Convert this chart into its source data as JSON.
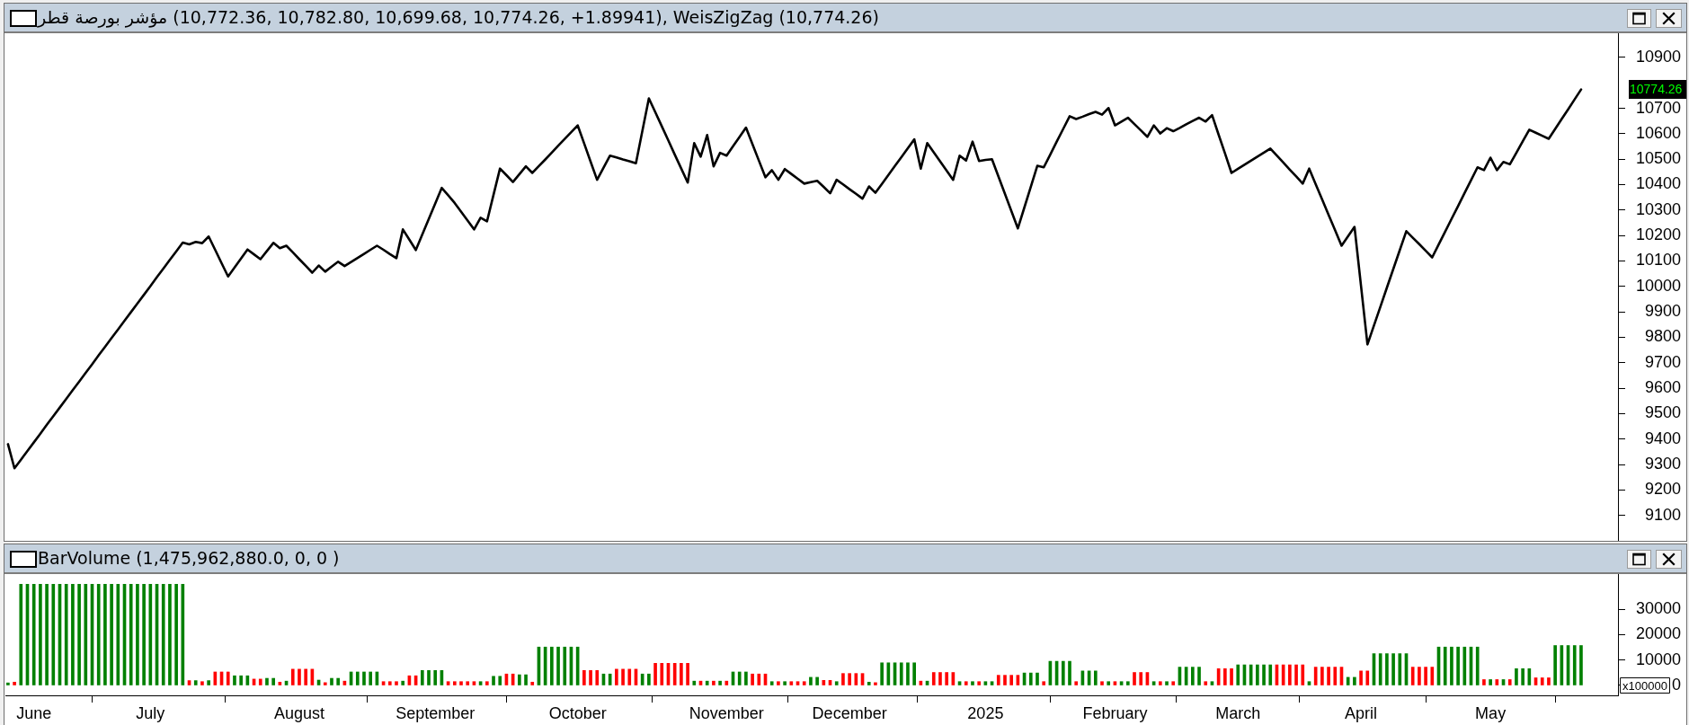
{
  "chart_data": [
    {
      "type": "line",
      "title": "مؤشر بورصة قطر (10,772.36, 10,782.80, 10,699.68, 10,774.26, +1.89941), WeisZigZag (10,774.26)",
      "color": "#000000",
      "categories": [
        null,
        null,
        null,
        null,
        null,
        null,
        null,
        null,
        null,
        null,
        null,
        null,
        null,
        null,
        null,
        null,
        null,
        null,
        null,
        null,
        null,
        null,
        null,
        null,
        null,
        null,
        null,
        null,
        null,
        null,
        null,
        null,
        null,
        null,
        null,
        null,
        null,
        null,
        null,
        null,
        null,
        null,
        null,
        null,
        null,
        null,
        null,
        null,
        null,
        null,
        null,
        null,
        null,
        null,
        null,
        null,
        null,
        null,
        null,
        null,
        null,
        null,
        null,
        null,
        null,
        null,
        null,
        null,
        null,
        null,
        null,
        null,
        null,
        null,
        null,
        null,
        null,
        null,
        null,
        null,
        null,
        null,
        null,
        null,
        null,
        null,
        null,
        null,
        null,
        null,
        null,
        null,
        null,
        null,
        null,
        null,
        null,
        null,
        null,
        null,
        null,
        null,
        null,
        null,
        null,
        null,
        null,
        null,
        null,
        null,
        null,
        null,
        null,
        null,
        null,
        null,
        null,
        null,
        null,
        null,
        null,
        null,
        null,
        null,
        null,
        null,
        null,
        null,
        null,
        null,
        null,
        null,
        null,
        null,
        null,
        null,
        null,
        null,
        null,
        null,
        null,
        null,
        null,
        null,
        null,
        null,
        null,
        null,
        null,
        null,
        null,
        null,
        null,
        null,
        null,
        null,
        null,
        null,
        null,
        null,
        null,
        null,
        null,
        null,
        null,
        null,
        null,
        null,
        null,
        null,
        null,
        null,
        null,
        null,
        null,
        null,
        null,
        null,
        null,
        null,
        null,
        null,
        null,
        null,
        null,
        null,
        null,
        null,
        null,
        null,
        null,
        null,
        null,
        null,
        null,
        null,
        null,
        null,
        null,
        null,
        null,
        null,
        null,
        null,
        null,
        null,
        null,
        null,
        null,
        null,
        null,
        null,
        null,
        null,
        null,
        null,
        null,
        null,
        null,
        null,
        null,
        null,
        null,
        null,
        null,
        null,
        null,
        null,
        null,
        null,
        null,
        null,
        null,
        null,
        null,
        null,
        null,
        null,
        null,
        null,
        null,
        null,
        null,
        null
      ],
      "values": [
        9380,
        9285,
        9319,
        9353,
        9387,
        9421,
        9456,
        9490,
        9524,
        9558,
        9592,
        9626,
        9660,
        9694,
        9729,
        9763,
        9797,
        9831,
        9865,
        9899,
        9933,
        9967,
        10001,
        10036,
        10070,
        10104,
        10138,
        10172,
        10165,
        10175,
        10170,
        10196,
        10144,
        10091,
        10039,
        10074,
        10110,
        10145,
        10126,
        10107,
        10139,
        10171,
        10150,
        10160,
        10134,
        10107,
        10081,
        10054,
        10082,
        10058,
        10078,
        10097,
        10080,
        10096,
        10112,
        10128,
        10144,
        10160,
        10144,
        10127,
        10111,
        10224,
        10184,
        10143,
        10204,
        10265,
        10326,
        10387,
        10358,
        10328,
        10293,
        10259,
        10224,
        10270,
        10256,
        10360,
        10463,
        10437,
        10410,
        10441,
        10472,
        10446,
        10473,
        10499,
        10526,
        10553,
        10580,
        10606,
        10633,
        10562,
        10490,
        10419,
        10467,
        10514,
        10507,
        10499,
        10492,
        10484,
        10612,
        10739,
        10684,
        10629,
        10574,
        10518,
        10463,
        10408,
        10563,
        10510,
        10595,
        10472,
        10525,
        10514,
        10551,
        10587,
        10624,
        10559,
        10494,
        10429,
        10457,
        10419,
        10461,
        10442,
        10423,
        10404,
        10410,
        10415,
        10391,
        10366,
        10419,
        10401,
        10382,
        10364,
        10345,
        10393,
        10368,
        10403,
        10438,
        10473,
        10508,
        10543,
        10578,
        10463,
        10563,
        10527,
        10491,
        10455,
        10419,
        10514,
        10495,
        10569,
        10493,
        10497,
        10500,
        10432,
        10364,
        10296,
        10228,
        10310,
        10392,
        10474,
        10468,
        10518,
        10569,
        10619,
        10669,
        10658,
        10667,
        10677,
        10686,
        10675,
        10701,
        10633,
        10648,
        10663,
        10638,
        10613,
        10588,
        10633,
        10601,
        10622,
        10610,
        10623,
        10637,
        10650,
        10663,
        10648,
        10673,
        10597,
        10522,
        10446,
        10462,
        10478,
        10494,
        10510,
        10526,
        10542,
        10514,
        10487,
        10459,
        10432,
        10404,
        10463,
        10402,
        10342,
        10281,
        10221,
        10160,
        10197,
        10234,
        10003,
        9772,
        9846,
        9920,
        9995,
        10069,
        10143,
        10217,
        10191,
        10166,
        10140,
        10114,
        10165,
        10215,
        10266,
        10316,
        10367,
        10417,
        10468,
        10457,
        10506,
        10457,
        10489,
        10480,
        10525,
        10571,
        10616,
        10604,
        10592,
        10580,
        10619,
        10658,
        10696,
        10735,
        10774
      ],
      "ylim": [
        9000,
        10995
      ],
      "yticks": [
        9100,
        9200,
        9300,
        9400,
        9500,
        9600,
        9700,
        9800,
        9900,
        10000,
        10100,
        10200,
        10300,
        10400,
        10500,
        10600,
        10700,
        10900
      ],
      "tick_labels": "y",
      "annotations": [
        "10774.26"
      ]
    },
    {
      "type": "bar",
      "title": "BarVolume (1,475,962,880.0, 0, 0 )",
      "categories": [
        null,
        null,
        null,
        null,
        "June",
        null,
        null,
        null,
        null,
        null,
        null,
        null,
        null,
        null,
        null,
        null,
        null,
        null,
        null,
        null,
        null,
        null,
        "July",
        null,
        null,
        null,
        null,
        null,
        null,
        null,
        null,
        null,
        null,
        null,
        null,
        null,
        null,
        null,
        null,
        null,
        null,
        null,
        null,
        null,
        null,
        "August",
        null,
        null,
        null,
        null,
        null,
        null,
        null,
        null,
        null,
        null,
        null,
        null,
        null,
        null,
        null,
        null,
        null,
        null,
        null,
        null,
        "September",
        null,
        null,
        null,
        null,
        null,
        null,
        null,
        null,
        null,
        null,
        null,
        null,
        null,
        null,
        null,
        null,
        null,
        null,
        null,
        null,
        null,
        "October",
        null,
        null,
        null,
        null,
        null,
        null,
        null,
        null,
        null,
        null,
        null,
        null,
        null,
        null,
        null,
        null,
        null,
        null,
        null,
        null,
        null,
        null,
        "November",
        null,
        null,
        null,
        null,
        null,
        null,
        null,
        null,
        null,
        null,
        null,
        null,
        null,
        null,
        null,
        null,
        null,
        null,
        "December",
        null,
        null,
        null,
        null,
        null,
        null,
        null,
        null,
        null,
        null,
        null,
        null,
        null,
        null,
        null,
        null,
        null,
        null,
        null,
        null,
        "2025",
        null,
        null,
        null,
        null,
        null,
        null,
        null,
        null,
        null,
        null,
        null,
        null,
        null,
        null,
        null,
        null,
        null,
        null,
        null,
        "February",
        null,
        null,
        null,
        null,
        null,
        null,
        null,
        null,
        null,
        null,
        null,
        null,
        null,
        null,
        null,
        null,
        null,
        null,
        "March",
        null,
        null,
        null,
        null,
        null,
        null,
        null,
        null,
        null,
        null,
        null,
        null,
        null,
        null,
        null,
        null,
        null,
        null,
        "April",
        null,
        null,
        null,
        null,
        null,
        null,
        null,
        null,
        null,
        null,
        null,
        null,
        null,
        null,
        null,
        null,
        null,
        null,
        null,
        "May",
        null,
        null,
        null,
        null,
        null,
        null,
        null,
        null,
        null,
        null,
        null,
        null,
        null,
        null
      ],
      "values": [
        1000,
        1300,
        39800,
        39800,
        39800,
        39800,
        39800,
        39800,
        39800,
        39800,
        39800,
        39800,
        39800,
        39800,
        39800,
        39800,
        39800,
        39800,
        39800,
        39800,
        39800,
        39800,
        39800,
        39800,
        39800,
        39800,
        39800,
        39800,
        1900,
        1900,
        1500,
        1900,
        5300,
        5300,
        5300,
        3800,
        3800,
        3800,
        2500,
        2500,
        2800,
        2800,
        1300,
        1700,
        6400,
        6400,
        6400,
        6400,
        2100,
        1100,
        2800,
        2800,
        1700,
        5300,
        5300,
        5300,
        5300,
        5300,
        1500,
        1500,
        1500,
        1700,
        3800,
        3800,
        5900,
        5900,
        5900,
        5900,
        1500,
        1500,
        1500,
        1500,
        1500,
        1500,
        1500,
        3600,
        3600,
        4500,
        4500,
        4200,
        4200,
        1300,
        15100,
        15100,
        15100,
        15100,
        15100,
        15100,
        15100,
        5900,
        5900,
        5900,
        4500,
        4500,
        6400,
        6400,
        6400,
        6400,
        4500,
        4500,
        8700,
        8700,
        8700,
        8700,
        8700,
        8700,
        1700,
        1700,
        1700,
        1700,
        1700,
        1700,
        5300,
        5300,
        5300,
        4500,
        4500,
        4500,
        1500,
        1500,
        1500,
        1500,
        1500,
        1500,
        3200,
        3200,
        2000,
        2000,
        1500,
        4700,
        4700,
        4700,
        4700,
        1300,
        1100,
        8900,
        8900,
        8900,
        8900,
        8900,
        8900,
        1700,
        1700,
        5100,
        5100,
        5100,
        5100,
        1500,
        1500,
        1500,
        1500,
        1500,
        1500,
        4000,
        4000,
        4000,
        4000,
        4900,
        4900,
        4900,
        1500,
        9500,
        9500,
        9500,
        9500,
        1500,
        5700,
        5700,
        5700,
        1500,
        1500,
        1500,
        1500,
        1500,
        5100,
        5100,
        5100,
        1500,
        1500,
        1500,
        1500,
        7200,
        7200,
        7200,
        7200,
        1500,
        1500,
        6600,
        6600,
        6600,
        8100,
        8100,
        8100,
        8100,
        8100,
        8100,
        8100,
        8100,
        8100,
        8100,
        8100,
        1500,
        7200,
        7200,
        7200,
        7200,
        7200,
        3200,
        3200,
        5700,
        5700,
        12500,
        12500,
        12500,
        12500,
        12500,
        12500,
        7200,
        7200,
        7200,
        7200,
        15100,
        15100,
        15100,
        15100,
        15100,
        15100,
        15100,
        2300,
        2300,
        2300,
        2300,
        2300,
        6600,
        6600,
        6600,
        3000,
        3000,
        3000,
        15700,
        15700,
        15700,
        15700,
        15700
      ],
      "colors": [
        "#008000",
        "#ff0000",
        "#008000",
        "#008000",
        "#008000",
        "#008000",
        "#008000",
        "#008000",
        "#008000",
        "#008000",
        "#008000",
        "#008000",
        "#008000",
        "#008000",
        "#008000",
        "#008000",
        "#008000",
        "#008000",
        "#008000",
        "#008000",
        "#008000",
        "#008000",
        "#008000",
        "#008000",
        "#008000",
        "#008000",
        "#008000",
        "#008000",
        "#ff0000",
        "#008000",
        "#ff0000",
        "#008000",
        "#ff0000",
        "#ff0000",
        "#ff0000",
        "#008000",
        "#008000",
        "#008000",
        "#ff0000",
        "#ff0000",
        "#008000",
        "#008000",
        "#ff0000",
        "#008000",
        "#ff0000",
        "#ff0000",
        "#ff0000",
        "#ff0000",
        "#008000",
        "#ff0000",
        "#008000",
        "#008000",
        "#ff0000",
        "#008000",
        "#008000",
        "#008000",
        "#008000",
        "#008000",
        "#ff0000",
        "#ff0000",
        "#ff0000",
        "#008000",
        "#ff0000",
        "#ff0000",
        "#008000",
        "#008000",
        "#008000",
        "#008000",
        "#ff0000",
        "#ff0000",
        "#ff0000",
        "#ff0000",
        "#ff0000",
        "#008000",
        "#ff0000",
        "#008000",
        "#008000",
        "#ff0000",
        "#ff0000",
        "#008000",
        "#008000",
        "#ff0000",
        "#008000",
        "#008000",
        "#008000",
        "#008000",
        "#008000",
        "#008000",
        "#008000",
        "#ff0000",
        "#ff0000",
        "#ff0000",
        "#008000",
        "#008000",
        "#ff0000",
        "#ff0000",
        "#ff0000",
        "#ff0000",
        "#008000",
        "#008000",
        "#ff0000",
        "#ff0000",
        "#ff0000",
        "#ff0000",
        "#ff0000",
        "#ff0000",
        "#008000",
        "#ff0000",
        "#008000",
        "#ff0000",
        "#008000",
        "#ff0000",
        "#008000",
        "#008000",
        "#008000",
        "#ff0000",
        "#ff0000",
        "#ff0000",
        "#008000",
        "#ff0000",
        "#008000",
        "#ff0000",
        "#ff0000",
        "#ff0000",
        "#008000",
        "#008000",
        "#ff0000",
        "#ff0000",
        "#008000",
        "#ff0000",
        "#ff0000",
        "#ff0000",
        "#ff0000",
        "#008000",
        "#ff0000",
        "#008000",
        "#008000",
        "#008000",
        "#008000",
        "#008000",
        "#008000",
        "#ff0000",
        "#008000",
        "#ff0000",
        "#ff0000",
        "#ff0000",
        "#ff0000",
        "#008000",
        "#ff0000",
        "#008000",
        "#ff0000",
        "#008000",
        "#008000",
        "#ff0000",
        "#ff0000",
        "#ff0000",
        "#ff0000",
        "#008000",
        "#008000",
        "#008000",
        "#ff0000",
        "#008000",
        "#008000",
        "#008000",
        "#008000",
        "#ff0000",
        "#008000",
        "#008000",
        "#008000",
        "#ff0000",
        "#008000",
        "#ff0000",
        "#008000",
        "#008000",
        "#ff0000",
        "#ff0000",
        "#ff0000",
        "#008000",
        "#ff0000",
        "#008000",
        "#ff0000",
        "#008000",
        "#008000",
        "#008000",
        "#008000",
        "#ff0000",
        "#008000",
        "#ff0000",
        "#ff0000",
        "#ff0000",
        "#008000",
        "#008000",
        "#008000",
        "#008000",
        "#008000",
        "#008000",
        "#ff0000",
        "#ff0000",
        "#ff0000",
        "#ff0000",
        "#ff0000",
        "#008000",
        "#ff0000",
        "#ff0000",
        "#ff0000",
        "#ff0000",
        "#ff0000",
        "#008000",
        "#008000",
        "#ff0000",
        "#ff0000",
        "#008000",
        "#008000",
        "#008000",
        "#008000",
        "#008000",
        "#008000",
        "#ff0000",
        "#ff0000",
        "#ff0000",
        "#ff0000",
        "#008000",
        "#008000",
        "#008000",
        "#008000",
        "#008000",
        "#008000",
        "#008000",
        "#ff0000",
        "#008000",
        "#ff0000",
        "#008000",
        "#ff0000",
        "#008000",
        "#008000",
        "#008000",
        "#ff0000",
        "#ff0000",
        "#ff0000",
        "#008000",
        "#008000",
        "#008000",
        "#008000",
        "#008000"
      ],
      "ylim": [
        -3900,
        43800
      ],
      "yticks": [
        0,
        10000,
        20000,
        30000
      ],
      "ylabel": "x100000"
    }
  ]
}
